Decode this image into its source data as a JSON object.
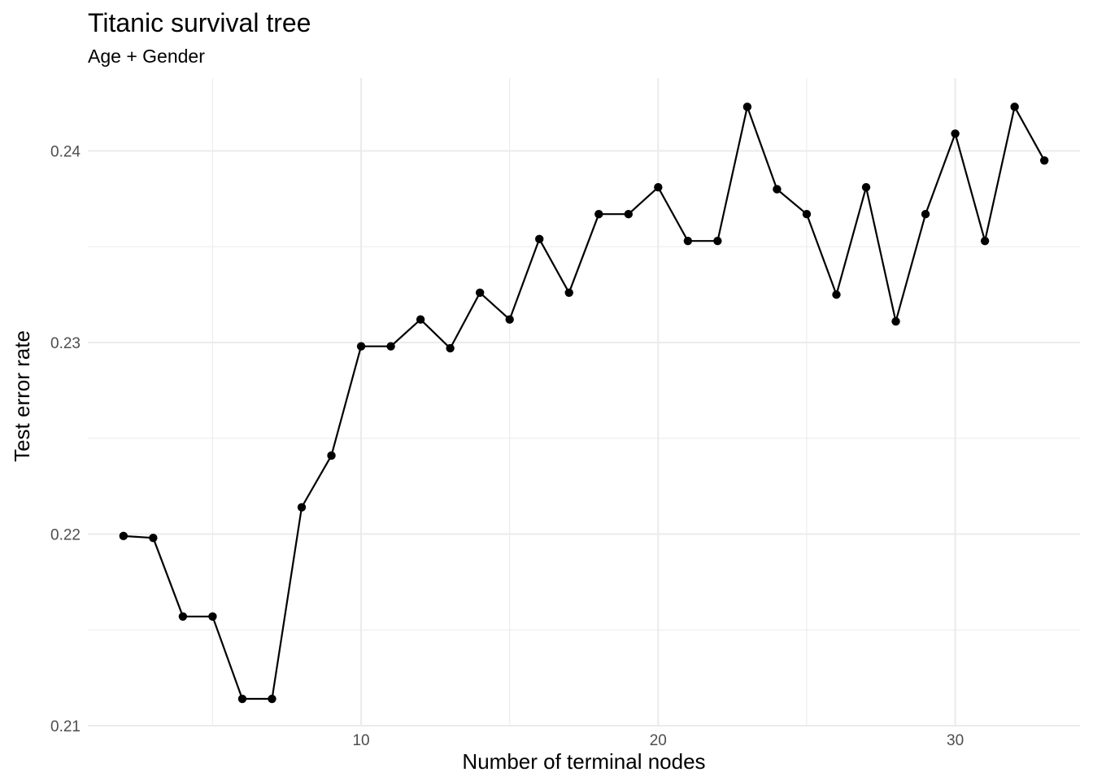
{
  "chart_data": {
    "type": "line",
    "title": "Titanic survival tree",
    "subtitle": "Age + Gender",
    "xlabel": "Number of terminal nodes",
    "ylabel": "Test error rate",
    "xlim": [
      0.8,
      34.2
    ],
    "ylim": [
      0.21,
      0.2438
    ],
    "x_ticks": [
      10,
      20,
      30
    ],
    "x_tick_labels": [
      "10",
      "20",
      "30"
    ],
    "x_minor": [
      5,
      15,
      25
    ],
    "y_ticks": [
      0.21,
      0.22,
      0.23,
      0.24
    ],
    "y_tick_labels": [
      "0.21",
      "0.22",
      "0.23",
      "0.24"
    ],
    "y_minor": [
      0.215,
      0.225,
      0.235
    ],
    "grid": true,
    "legend": "none",
    "series": [
      {
        "x": [
          2,
          3,
          4,
          5,
          6,
          7,
          8,
          9,
          10,
          11,
          12,
          13,
          14,
          15,
          16,
          17,
          18,
          19,
          20,
          21,
          22,
          23,
          24,
          25,
          26,
          27,
          28,
          29,
          30,
          31,
          32,
          33
        ],
        "values": [
          0.2199,
          0.2198,
          0.2157,
          0.2157,
          0.2114,
          0.2114,
          0.2214,
          0.2241,
          0.2298,
          0.2298,
          0.2312,
          0.2297,
          0.2326,
          0.2312,
          0.2354,
          0.2326,
          0.2367,
          0.2367,
          0.2381,
          0.2353,
          0.2353,
          0.2423,
          0.238,
          0.2367,
          0.2325,
          0.2381,
          0.2311,
          0.2367,
          0.2409,
          0.2353,
          0.2423,
          0.2395
        ],
        "color": "#000000"
      }
    ]
  }
}
